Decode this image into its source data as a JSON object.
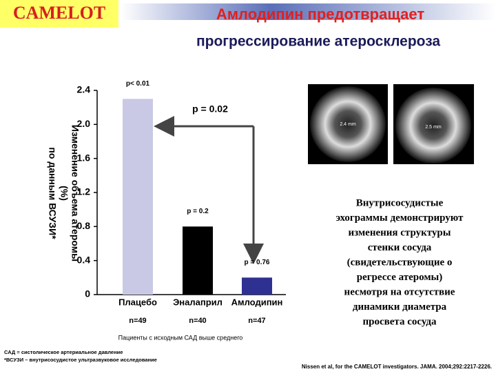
{
  "slide": {
    "logo": "CAMELOT",
    "title": [
      "Амлодипин предотвращает",
      "прогрессирование атеросклероза"
    ],
    "image_labels": [
      "2.4 mm",
      "2.5 mm"
    ],
    "description": [
      "Внутрисосудистые",
      "эхограммы демонстрируют",
      "изменения структуры",
      "стенки сосуда",
      "(свидетельствующие о",
      "регрессе атеромы)",
      "несмотря на отсутствие",
      "динамики диаметра",
      "просвета сосуда"
    ],
    "footnotes": [
      "САД = систолическое артериальное давление",
      "*ВСУЗИ – внутрисосудистое ультразвуковое исследование"
    ],
    "citation": "Nissen et al, for the CAMELOT investigators. JAMA. 2004;292:2217-2226."
  },
  "chart_data": {
    "type": "bar",
    "y_label": [
      "Изменение объема атеромы",
      "(%)",
      "по данным ВСУЗИ*"
    ],
    "categories": [
      "Плацебо",
      "Эналаприл",
      "Амлодипин"
    ],
    "values": [
      2.3,
      0.8,
      0.2
    ],
    "colors": [
      "#c9c9e6",
      "#000000",
      "#2e3192"
    ],
    "p_values": [
      "p< 0.01",
      "p = 0.2",
      "p = 0.76"
    ],
    "n": [
      "n=49",
      "n=40",
      "n=47"
    ],
    "comparison": "p = 0.02",
    "note": "Пациенты с исходным САД выше среднего",
    "ylim": [
      0,
      2.4
    ],
    "yticks": [
      0,
      0.4,
      0.8,
      1.2,
      1.6,
      {
        "value": 2,
        "label": "2.0"
      },
      2.4
    ]
  }
}
